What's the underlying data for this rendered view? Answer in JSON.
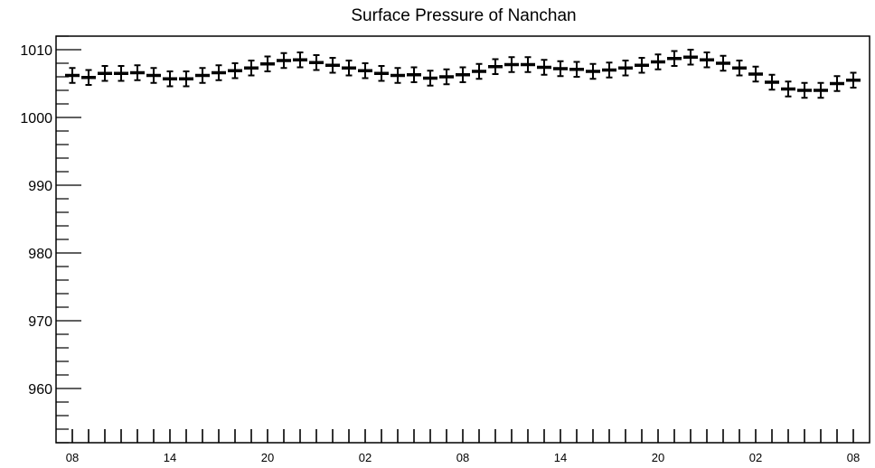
{
  "chart_data": {
    "type": "scatter",
    "title": "Surface Pressure of Nanchan",
    "xlabel": "",
    "ylabel": "",
    "ylim": [
      952,
      1012
    ],
    "yticks": [
      960,
      970,
      980,
      990,
      1000,
      1010
    ],
    "x_ticks": [
      "08",
      "14",
      "20",
      "02",
      "08",
      "14",
      "20",
      "02",
      "08"
    ],
    "x_interval_hours": 1,
    "grid": false,
    "error_bar": 1.1,
    "values": [
      1006.2,
      1005.9,
      1006.5,
      1006.5,
      1006.6,
      1006.2,
      1005.7,
      1005.7,
      1006.2,
      1006.6,
      1006.9,
      1007.3,
      1007.9,
      1008.4,
      1008.5,
      1008.1,
      1007.7,
      1007.3,
      1006.9,
      1006.5,
      1006.2,
      1006.3,
      1005.8,
      1006.0,
      1006.3,
      1006.8,
      1007.5,
      1007.8,
      1007.8,
      1007.4,
      1007.2,
      1007.1,
      1006.8,
      1007.0,
      1007.3,
      1007.7,
      1008.2,
      1008.7,
      1008.9,
      1008.5,
      1008.0,
      1007.3,
      1006.4,
      1005.2,
      1004.2,
      1004.0,
      1004.0,
      1005.0,
      1005.5
    ]
  }
}
